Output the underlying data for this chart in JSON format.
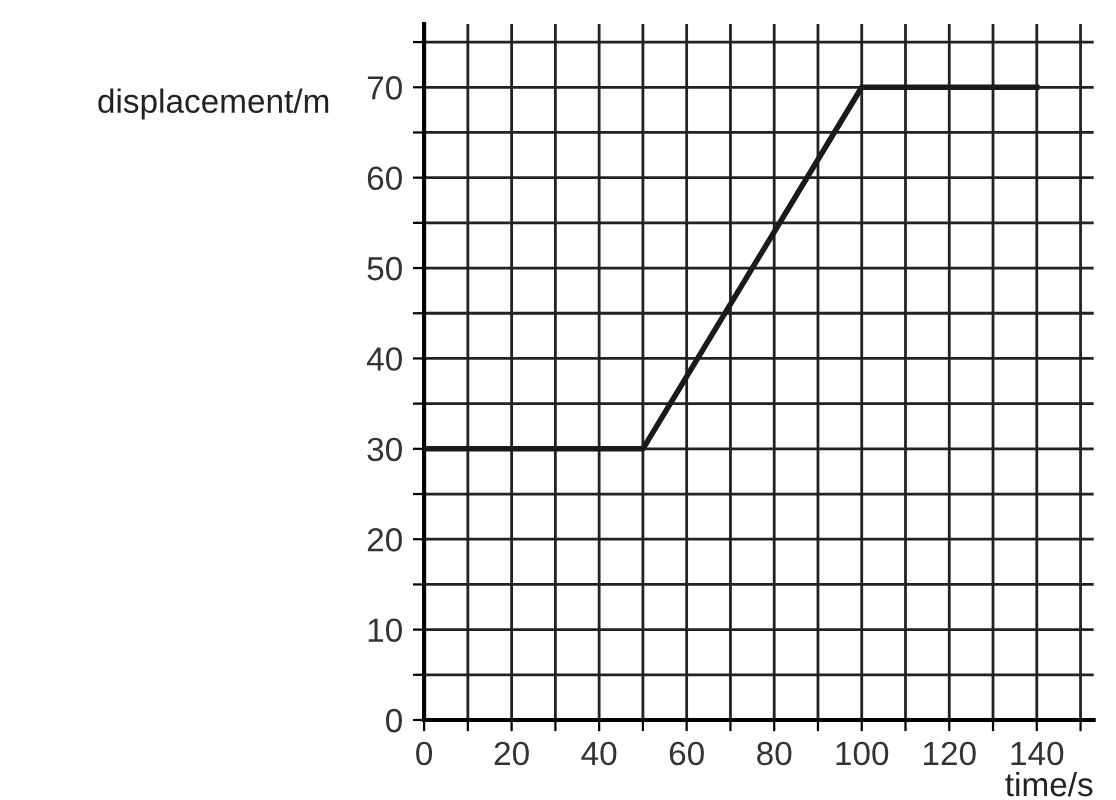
{
  "chart_data": {
    "type": "line",
    "xlabel": "time/s",
    "ylabel": "displacement/m",
    "x": [
      0,
      50,
      100,
      140
    ],
    "series": [
      {
        "color": "#1a1a1a",
        "values": [
          30,
          30,
          70,
          70
        ]
      }
    ],
    "xlim": [
      0,
      153
    ],
    "ylim": [
      0,
      77
    ],
    "xticks": [
      0,
      {
        "value": 10,
        "label": null
      },
      20,
      {
        "value": 30,
        "label": null
      },
      40,
      {
        "value": 50,
        "label": null
      },
      60,
      {
        "value": 70,
        "label": null
      },
      80,
      {
        "value": 90,
        "label": null
      },
      100,
      {
        "value": 110,
        "label": null
      },
      120,
      {
        "value": 130,
        "label": null
      },
      140,
      {
        "value": 150,
        "label": null
      }
    ],
    "yticks": [
      0,
      {
        "value": 5,
        "label": null
      },
      10,
      {
        "value": 15,
        "label": null
      },
      20,
      {
        "value": 25,
        "label": null
      },
      30,
      {
        "value": 35,
        "label": null
      },
      40,
      {
        "value": 45,
        "label": null
      },
      50,
      {
        "value": 55,
        "label": null
      },
      60,
      {
        "value": 65,
        "label": null
      },
      70,
      {
        "value": 75,
        "label": null
      }
    ],
    "grid": true,
    "marker": "none",
    "line_style": "solid"
  }
}
